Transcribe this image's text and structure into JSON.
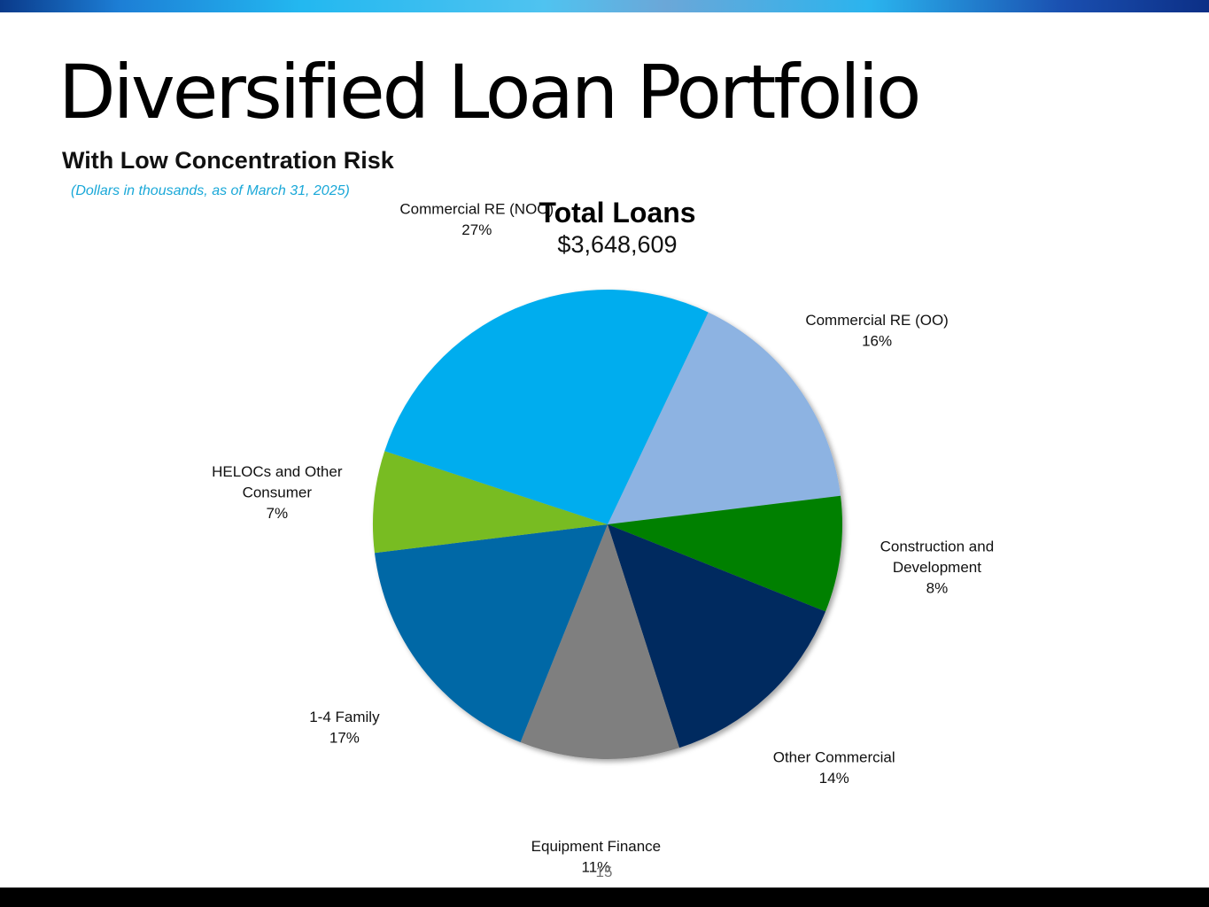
{
  "slide": {
    "title": "Diversified Loan Portfolio",
    "subtitle": "With Low Concentration Risk",
    "note": "(Dollars in thousands, as of March 31, 2025)",
    "page_number": "15"
  },
  "colors": {
    "top_bar_accent": "#23b8f0",
    "note_text": "#1aa8d8",
    "bottom_bar": "#000000"
  },
  "chart_data": {
    "type": "pie",
    "title": "Total Loans",
    "subtitle": "$3,648,609",
    "slices": [
      {
        "name": "Commercial RE (OO)",
        "label_lines": [
          "Commercial RE (OO)",
          "16%"
        ],
        "value": 16,
        "color": "#8db3e2"
      },
      {
        "name": "Construction and Development",
        "label_lines": [
          "Construction and",
          "Development",
          "8%"
        ],
        "value": 8,
        "color": "#008000"
      },
      {
        "name": "Other Commercial",
        "label_lines": [
          "Other Commercial",
          "14%"
        ],
        "value": 14,
        "color": "#002b5e"
      },
      {
        "name": "Equipment Finance",
        "label_lines": [
          "Equipment Finance",
          "11%"
        ],
        "value": 11,
        "color": "#7f7f7f"
      },
      {
        "name": "1-4 Family",
        "label_lines": [
          "1-4 Family",
          "17%"
        ],
        "value": 17,
        "color": "#0067a6"
      },
      {
        "name": "HELOCs and Other Consumer",
        "label_lines": [
          "HELOCs and Other",
          "Consumer",
          "7%"
        ],
        "value": 7,
        "color": "#78bc22"
      },
      {
        "name": "Commercial RE (NOO)",
        "label_lines": [
          "Commercial RE (NOO)",
          "27%"
        ],
        "value": 27,
        "color": "#00adee"
      }
    ],
    "start_angle_deg": 25.4,
    "direction": "clockwise",
    "labels": "outside"
  }
}
